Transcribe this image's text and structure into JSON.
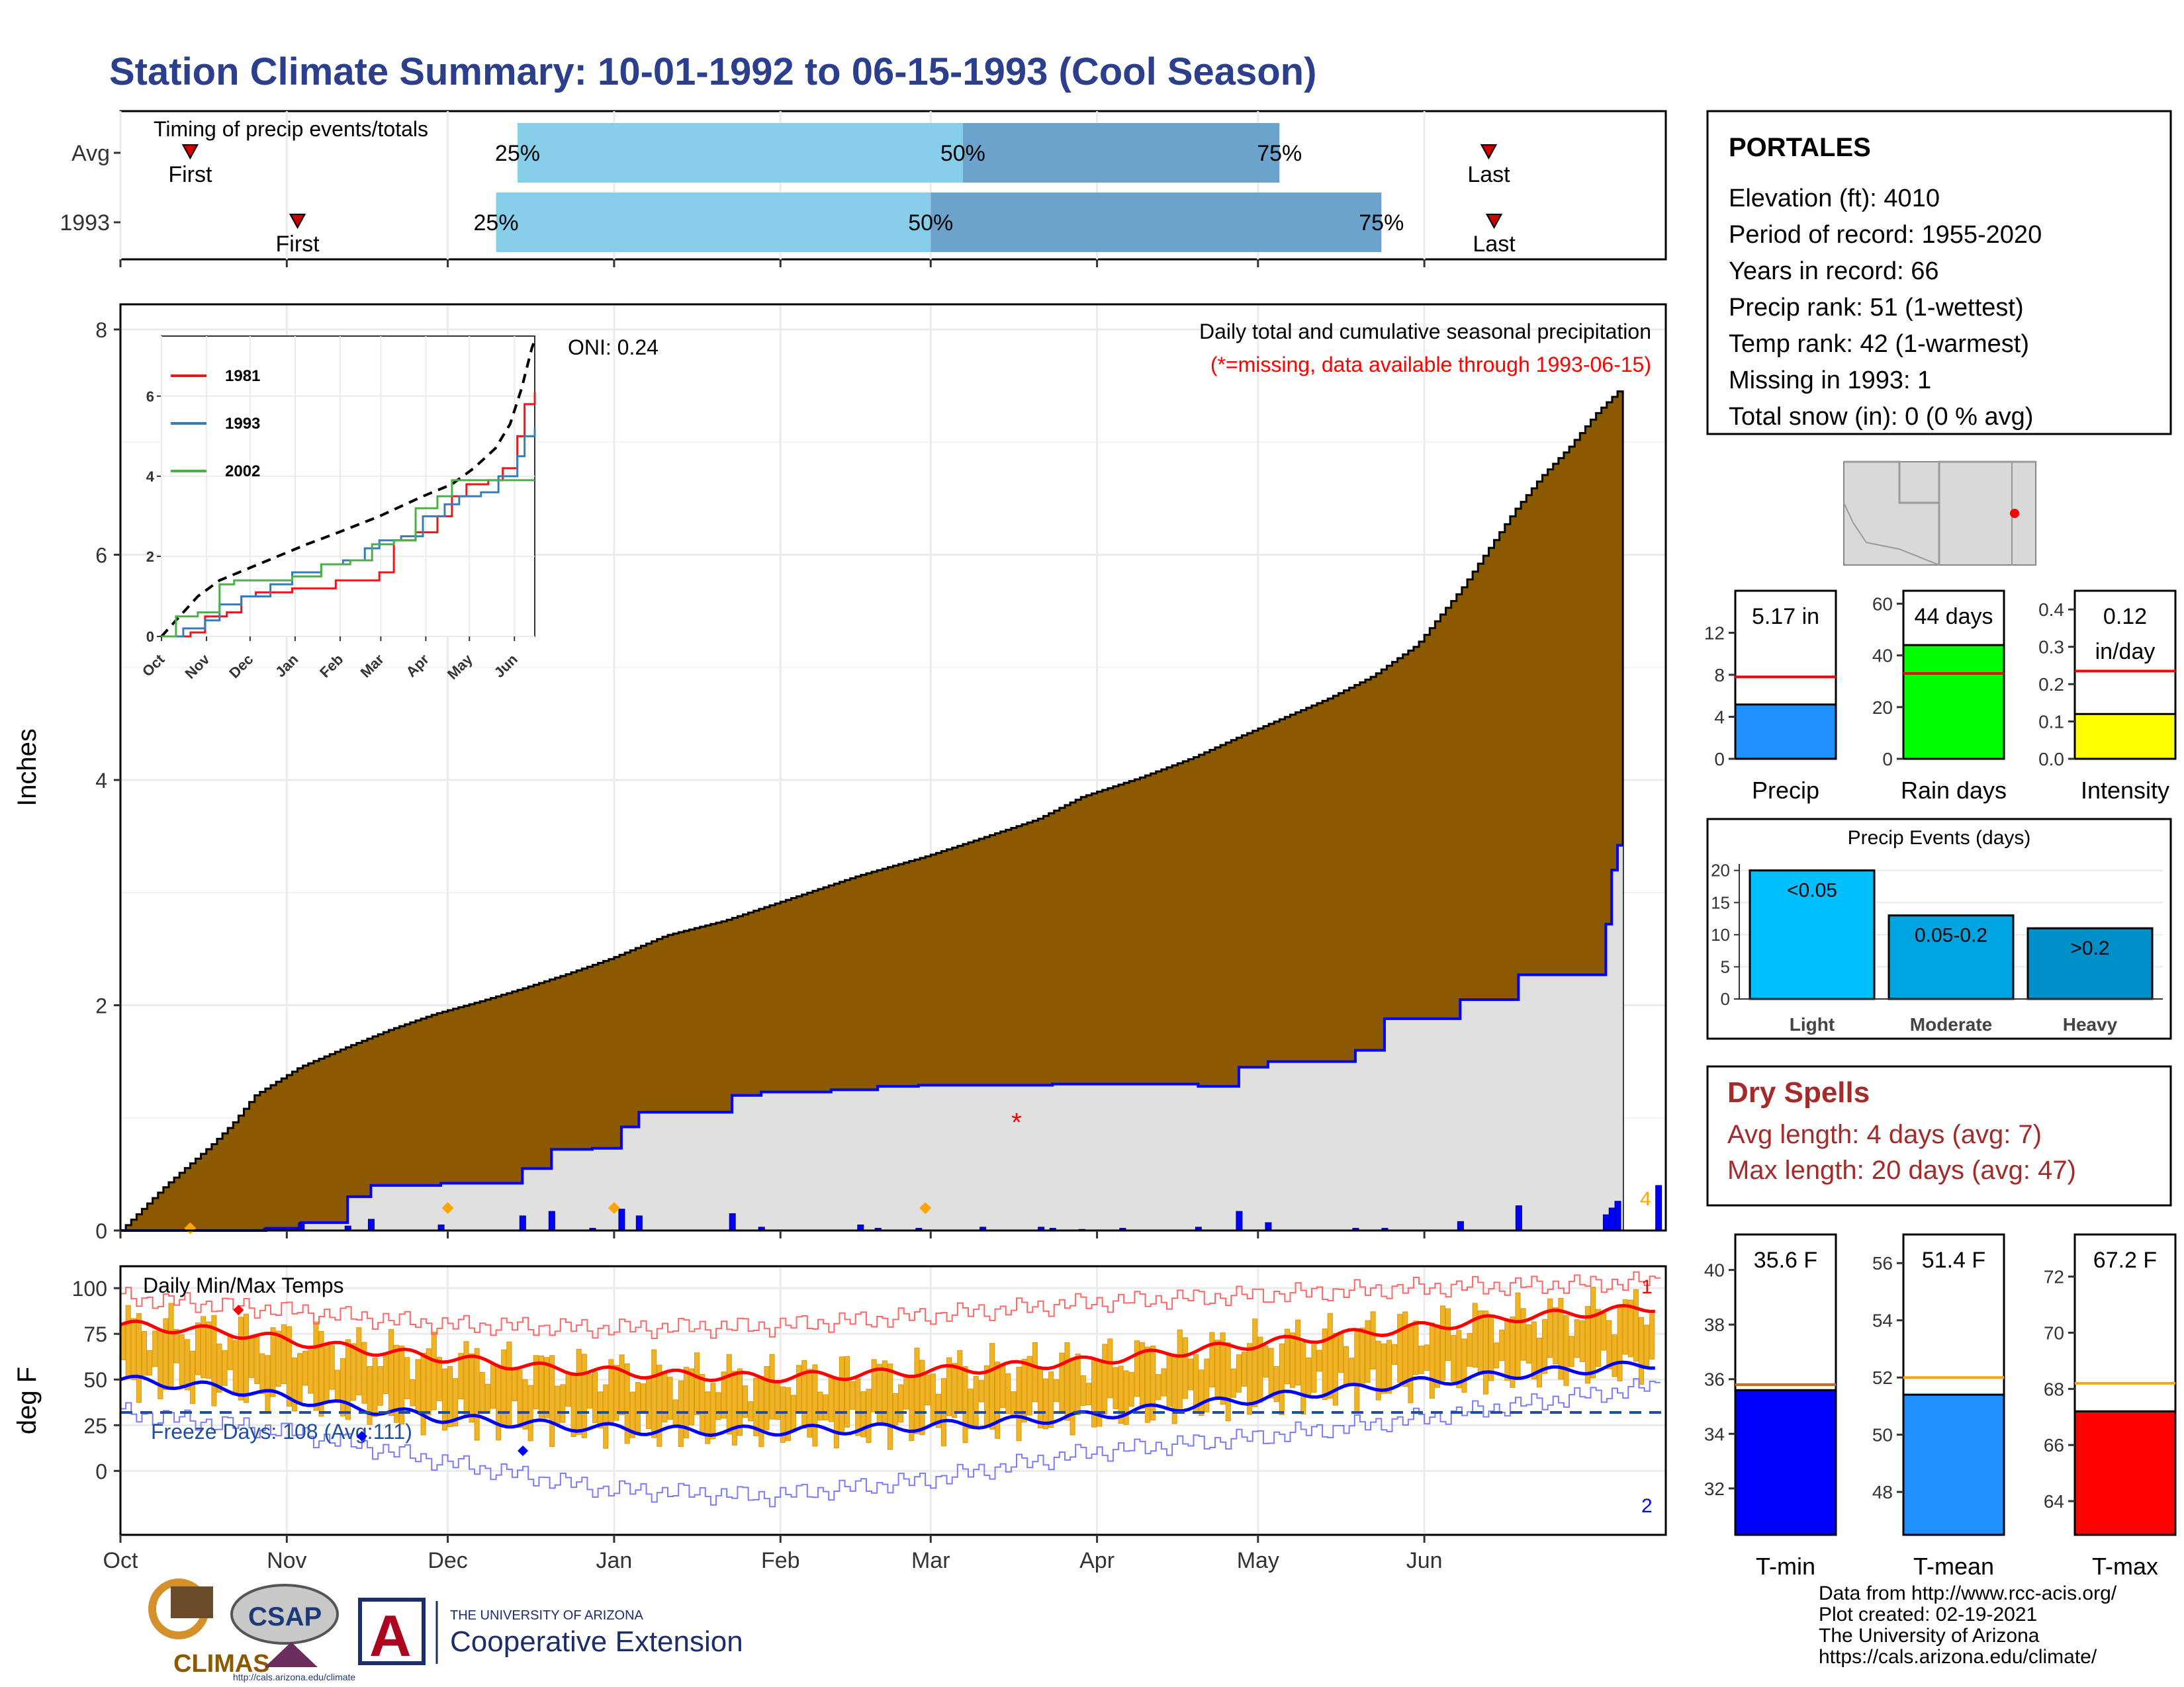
{
  "page": {
    "title": "Station Climate Summary: 10-01-1992 to 06-15-1993 (Cool Season)",
    "colors": {
      "title": "#2b3f8c",
      "precip_fill": "#8b5a00",
      "normal_fill": "#e0e0e0",
      "percentile_light": "#87ceeb",
      "percentile_dark": "#6ba3cc",
      "dry_spells_text": "#a52a2a",
      "bar_blue": "#0000ff",
      "freeze_line": "#1f4e9c"
    }
  },
  "station": {
    "name": "PORTALES",
    "lines": [
      "Elevation (ft): 4010",
      "Period of record: 1955-2020",
      "Years in record: 66",
      "Precip rank: 51 (1-wettest)",
      "Temp rank: 42 (1-warmest)",
      "Missing in 1993: 1",
      "Total snow (in): 0 (0 % avg)"
    ]
  },
  "dry_spells": {
    "title": "Dry Spells",
    "avg_line": "Avg length: 4 days (avg: 7)",
    "max_line": "Max length: 20 days (avg: 47)"
  },
  "footer": {
    "lines": [
      "Data from http://www.rcc-acis.org/",
      "Plot created: 02-19-2021",
      "The University of Arizona",
      "https://cals.arizona.edu/climate/"
    ],
    "logo_climas": "CLIMAS",
    "logo_csap": "CSAP",
    "logo_csap_url": "http://cals.arizona.edu/climate",
    "logo_ua_small": "THE UNIVERSITY OF ARIZONA",
    "logo_ua_big": "Cooperative Extension",
    "logo_ua_letter": "A"
  },
  "month_labels": [
    "Oct",
    "Nov",
    "Dec",
    "Jan",
    "Feb",
    "Mar",
    "Apr",
    "May",
    "Jun"
  ],
  "chart_data": [
    {
      "type": "bar",
      "name": "timing",
      "title": "Timing of precip events/totals",
      "rows": [
        {
          "label": "Avg",
          "first_day": 13,
          "p25_day": 74,
          "p50_day": 157,
          "p75_day": 216,
          "last_day": 255
        },
        {
          "label": "1993",
          "first_day": 33,
          "p25_day": 70,
          "p50_day": 151,
          "p75_day": 235,
          "last_day": 256
        }
      ],
      "pct_labels": [
        "25%",
        "50%",
        "75%"
      ],
      "first_text": "First",
      "last_text": "Last"
    },
    {
      "type": "area",
      "name": "cumulative_precip",
      "title": "Daily total and cumulative seasonal precipitation",
      "note": "(*=missing, data available through 1993-06-15)",
      "oni": "ONI: 0.24",
      "ylabel": "Inches",
      "ylim": [
        0,
        8
      ],
      "yticks": [
        0,
        2,
        4,
        6,
        8
      ],
      "normal_cumulative_points": [
        [
          0,
          0
        ],
        [
          10,
          0.4
        ],
        [
          20,
          0.75
        ],
        [
          25,
          0.95
        ],
        [
          30,
          1.2
        ],
        [
          40,
          1.45
        ],
        [
          50,
          1.62
        ],
        [
          60,
          1.78
        ],
        [
          70,
          1.92
        ],
        [
          80,
          2.03
        ],
        [
          90,
          2.15
        ],
        [
          100,
          2.28
        ],
        [
          110,
          2.42
        ],
        [
          122,
          2.62
        ],
        [
          135,
          2.75
        ],
        [
          150,
          2.95
        ],
        [
          165,
          3.15
        ],
        [
          180,
          3.32
        ],
        [
          190,
          3.45
        ],
        [
          205,
          3.65
        ],
        [
          215,
          3.85
        ],
        [
          228,
          4.02
        ],
        [
          240,
          4.2
        ],
        [
          250,
          4.38
        ],
        [
          260,
          4.55
        ],
        [
          270,
          4.72
        ],
        [
          280,
          4.92
        ],
        [
          290,
          5.2
        ],
        [
          295,
          5.45
        ],
        [
          300,
          5.7
        ],
        [
          306,
          6.05
        ],
        [
          312,
          6.4
        ],
        [
          318,
          6.7
        ],
        [
          324,
          6.95
        ],
        [
          330,
          7.25
        ],
        [
          335,
          7.45
        ]
      ],
      "observed_1993_steps": [
        [
          0,
          0
        ],
        [
          25,
          0.02
        ],
        [
          31,
          0.07
        ],
        [
          39,
          0.3
        ],
        [
          43,
          0.4
        ],
        [
          55,
          0.42
        ],
        [
          69,
          0.55
        ],
        [
          74,
          0.72
        ],
        [
          81,
          0.73
        ],
        [
          86,
          0.92
        ],
        [
          89,
          1.05
        ],
        [
          96,
          1.05
        ],
        [
          98,
          1.05
        ],
        [
          105,
          1.2
        ],
        [
          110,
          1.23
        ],
        [
          116,
          1.23
        ],
        [
          122,
          1.25
        ],
        [
          127,
          1.25
        ],
        [
          130,
          1.28
        ],
        [
          137,
          1.29
        ],
        [
          148,
          1.29
        ],
        [
          158,
          1.29
        ],
        [
          160,
          1.3
        ],
        [
          165,
          1.3
        ],
        [
          172,
          1.3
        ],
        [
          185,
          1.28
        ],
        [
          192,
          1.45
        ],
        [
          197,
          1.5
        ],
        [
          212,
          1.6
        ],
        [
          217,
          1.88
        ],
        [
          230,
          2.05
        ],
        [
          240,
          2.27
        ],
        [
          255,
          2.72
        ],
        [
          256,
          3.2
        ],
        [
          257,
          3.42
        ]
      ],
      "daily_bars": [
        [
          25,
          0.02
        ],
        [
          31,
          0.07
        ],
        [
          39,
          0.04
        ],
        [
          43,
          0.1
        ],
        [
          55,
          0.05
        ],
        [
          69,
          0.13
        ],
        [
          74,
          0.17
        ],
        [
          81,
          0.02
        ],
        [
          86,
          0.19
        ],
        [
          89,
          0.13
        ],
        [
          105,
          0.15
        ],
        [
          110,
          0.03
        ],
        [
          127,
          0.05
        ],
        [
          130,
          0.02
        ],
        [
          137,
          0.02
        ],
        [
          148,
          0.03
        ],
        [
          158,
          0.03
        ],
        [
          160,
          0.02
        ],
        [
          165,
          0.01
        ],
        [
          172,
          0.02
        ],
        [
          185,
          0.03
        ],
        [
          192,
          0.17
        ],
        [
          197,
          0.07
        ],
        [
          212,
          0.02
        ],
        [
          217,
          0.02
        ],
        [
          230,
          0.08
        ],
        [
          240,
          0.22
        ],
        [
          255,
          0.14
        ],
        [
          256,
          0.2
        ],
        [
          257,
          0.26
        ],
        [
          264,
          0.4
        ]
      ],
      "missing_marker": {
        "day": 167,
        "value": 1.0,
        "text": "*"
      },
      "record_markers": [
        [
          13,
          0.02,
          "orange"
        ],
        [
          61,
          0.2,
          "orange"
        ],
        [
          92,
          0.2,
          "orange"
        ],
        [
          150,
          0.2,
          "orange"
        ]
      ],
      "end_label": "4"
    },
    {
      "type": "line",
      "name": "inset_cumulative",
      "series": [
        {
          "name": "1981",
          "color": "#e41a1c",
          "points": [
            [
              0,
              0
            ],
            [
              20,
              0.1
            ],
            [
              30,
              0.5
            ],
            [
              45,
              0.6
            ],
            [
              55,
              1.0
            ],
            [
              65,
              1.1
            ],
            [
              90,
              1.2
            ],
            [
              120,
              1.4
            ],
            [
              150,
              1.6
            ],
            [
              160,
              2.4
            ],
            [
              175,
              2.6
            ],
            [
              190,
              3.0
            ],
            [
              200,
              3.5
            ],
            [
              210,
              3.8
            ],
            [
              225,
              3.9
            ],
            [
              235,
              4.2
            ],
            [
              245,
              5.0
            ],
            [
              250,
              5.8
            ],
            [
              257,
              6.1
            ]
          ]
        },
        {
          "name": "1993",
          "color": "#377eb8",
          "points": [
            [
              0,
              0
            ],
            [
              15,
              0.2
            ],
            [
              30,
              0.4
            ],
            [
              40,
              0.8
            ],
            [
              55,
              1.0
            ],
            [
              75,
              1.3
            ],
            [
              90,
              1.6
            ],
            [
              110,
              1.8
            ],
            [
              125,
              1.9
            ],
            [
              140,
              2.2
            ],
            [
              150,
              2.4
            ],
            [
              165,
              2.5
            ],
            [
              180,
              3.0
            ],
            [
              195,
              3.3
            ],
            [
              205,
              3.5
            ],
            [
              220,
              3.6
            ],
            [
              232,
              4.0
            ],
            [
              245,
              4.5
            ],
            [
              250,
              5.0
            ],
            [
              257,
              5.2
            ]
          ]
        },
        {
          "name": "2002",
          "color": "#4daf4a",
          "points": [
            [
              0,
              0
            ],
            [
              10,
              0.5
            ],
            [
              25,
              0.6
            ],
            [
              40,
              1.3
            ],
            [
              50,
              1.4
            ],
            [
              70,
              1.4
            ],
            [
              90,
              1.5
            ],
            [
              110,
              1.8
            ],
            [
              130,
              1.9
            ],
            [
              145,
              2.3
            ],
            [
              160,
              2.4
            ],
            [
              175,
              3.2
            ],
            [
              190,
              3.5
            ],
            [
              200,
              3.9
            ],
            [
              220,
              3.9
            ],
            [
              257,
              3.9
            ]
          ]
        }
      ],
      "normal_points": [
        [
          0,
          0
        ],
        [
          10,
          0.4
        ],
        [
          25,
          1.0
        ],
        [
          40,
          1.4
        ],
        [
          60,
          1.7
        ],
        [
          80,
          2.0
        ],
        [
          100,
          2.3
        ],
        [
          122,
          2.6
        ],
        [
          150,
          3.0
        ],
        [
          180,
          3.5
        ],
        [
          200,
          3.8
        ],
        [
          215,
          4.2
        ],
        [
          230,
          4.7
        ],
        [
          240,
          5.3
        ],
        [
          248,
          6.2
        ],
        [
          255,
          7.2
        ],
        [
          257,
          7.4
        ]
      ],
      "yticks": [
        0,
        2,
        4,
        6
      ],
      "ylim": [
        0,
        7.5
      ]
    },
    {
      "type": "bar",
      "name": "precip_total",
      "value": 5.17,
      "label_line1": "5.17 in",
      "avg": 7.8,
      "ylim": [
        0,
        16
      ],
      "yticks": [
        0,
        4,
        8,
        12
      ],
      "xlabel": "Precip",
      "color": "#1e90ff"
    },
    {
      "type": "bar",
      "name": "rain_days",
      "value": 44,
      "label_line1": "44 days",
      "avg": 33,
      "ylim": [
        0,
        65
      ],
      "yticks": [
        0,
        20,
        40,
        60
      ],
      "xlabel": "Rain days",
      "color": "#00ff00"
    },
    {
      "type": "bar",
      "name": "intensity",
      "value": 0.12,
      "label_line1": "0.12",
      "label_line2": "in/day",
      "avg": 0.235,
      "ylim": [
        0,
        0.45
      ],
      "yticks": [
        0.0,
        0.1,
        0.2,
        0.3,
        0.4
      ],
      "ytick_labels": [
        "0.0",
        "0.1",
        "0.2",
        "0.3",
        "0.4"
      ],
      "xlabel": "Intensity",
      "color": "#ffff00"
    },
    {
      "type": "bar",
      "name": "precip_events",
      "title": "Precip Events (days)",
      "categories": [
        "Light",
        "Moderate",
        "Heavy"
      ],
      "values": [
        20,
        13,
        11
      ],
      "bar_labels": [
        "<0.05",
        "0.05-0.2",
        ">0.2"
      ],
      "colors": [
        "#00bfff",
        "#00a5e0",
        "#0090c8"
      ],
      "ylim": [
        0,
        21
      ],
      "yticks": [
        0,
        5,
        10,
        15,
        20
      ]
    },
    {
      "type": "line",
      "name": "daily_temps",
      "title": "Daily Min/Max Temps",
      "ylabel": "deg F",
      "ylim": [
        -35,
        112
      ],
      "yticks": [
        0,
        25,
        50,
        75,
        100
      ],
      "freeze_label": "Freeze Days: 108 (Avg:111)",
      "freeze_line": 32,
      "avg_max_points": [
        [
          0,
          80
        ],
        [
          20,
          76
        ],
        [
          40,
          68
        ],
        [
          60,
          62
        ],
        [
          80,
          56
        ],
        [
          100,
          53
        ],
        [
          120,
          51
        ],
        [
          140,
          53
        ],
        [
          160,
          56
        ],
        [
          180,
          60
        ],
        [
          200,
          66
        ],
        [
          220,
          72
        ],
        [
          240,
          78
        ],
        [
          260,
          84
        ],
        [
          280,
          88
        ],
        [
          290,
          91
        ]
      ],
      "avg_min_points": [
        [
          0,
          50
        ],
        [
          20,
          45
        ],
        [
          40,
          36
        ],
        [
          60,
          29
        ],
        [
          80,
          25
        ],
        [
          100,
          22
        ],
        [
          120,
          22
        ],
        [
          140,
          23
        ],
        [
          160,
          26
        ],
        [
          180,
          30
        ],
        [
          200,
          36
        ],
        [
          220,
          42
        ],
        [
          240,
          48
        ],
        [
          260,
          53
        ],
        [
          280,
          57
        ],
        [
          290,
          60
        ]
      ],
      "record_max_points": [
        [
          0,
          95
        ],
        [
          30,
          88
        ],
        [
          60,
          80
        ],
        [
          90,
          78
        ],
        [
          120,
          79
        ],
        [
          150,
          85
        ],
        [
          180,
          92
        ],
        [
          210,
          96
        ],
        [
          240,
          100
        ],
        [
          270,
          102
        ],
        [
          290,
          104
        ]
      ],
      "record_min_points": [
        [
          0,
          32
        ],
        [
          30,
          22
        ],
        [
          60,
          5
        ],
        [
          90,
          -10
        ],
        [
          120,
          -14
        ],
        [
          150,
          -5
        ],
        [
          180,
          10
        ],
        [
          210,
          18
        ],
        [
          240,
          28
        ],
        [
          270,
          40
        ],
        [
          290,
          48
        ]
      ],
      "end_labels": [
        "1",
        "2"
      ]
    },
    {
      "type": "bar",
      "name": "t_min",
      "value": 35.6,
      "label_line1": "35.6 F",
      "avg": 35.8,
      "ylim": [
        30.3,
        41.3
      ],
      "yticks": [
        32,
        34,
        36,
        38,
        40
      ],
      "xlabel": "T-min",
      "color": "#0000ff",
      "avg_color": "#d2691e"
    },
    {
      "type": "bar",
      "name": "t_mean",
      "value": 51.4,
      "label_line1": "51.4 F",
      "avg": 52.0,
      "ylim": [
        46.5,
        57.0
      ],
      "yticks": [
        48,
        50,
        52,
        54,
        56
      ],
      "xlabel": "T-mean",
      "color": "#1e90ff",
      "avg_color": "#ffa500"
    },
    {
      "type": "bar",
      "name": "t_max",
      "value": 67.2,
      "label_line1": "67.2 F",
      "avg": 68.2,
      "ylim": [
        62.8,
        73.5
      ],
      "yticks": [
        64,
        66,
        68,
        70,
        72
      ],
      "xlabel": "T-max",
      "color": "#ff0000",
      "avg_color": "#ffa500"
    }
  ]
}
